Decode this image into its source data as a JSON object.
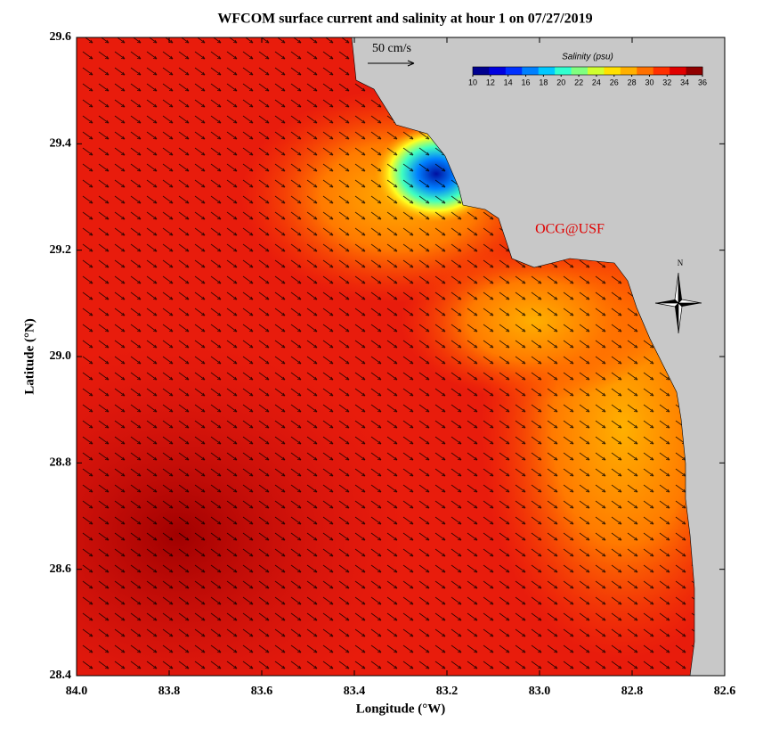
{
  "chart_data": {
    "type": "map",
    "title": "WFCOM surface current and salinity at hour 1 on 07/27/2019",
    "x_label": "Longitude (°W)",
    "y_label": "Latitude (°N)",
    "xlim": [
      84.0,
      82.6
    ],
    "xticks": [
      {
        "value": 84.0,
        "label": "84.0"
      },
      83.8,
      83.6,
      83.4,
      83.2,
      {
        "value": 83.0,
        "label": "83.0"
      },
      82.8,
      82.6
    ],
    "ylim": [
      28.4,
      29.6
    ],
    "yticks": [
      28.4,
      28.6,
      28.8,
      {
        "value": 29.0,
        "label": "29.0"
      },
      29.2,
      29.4,
      29.6
    ],
    "scale_label": "50 cm/s",
    "credit": "OCG@USF",
    "north_label": "N",
    "colorbar": {
      "title": "Salinity (psu)",
      "lim": [
        10,
        36
      ],
      "ticks": [
        10,
        12,
        14,
        16,
        18,
        20,
        22,
        24,
        26,
        28,
        30,
        32,
        34,
        36
      ],
      "colors": [
        "#00008f",
        "#0000df",
        "#0030ff",
        "#0080ff",
        "#00c8ff",
        "#30ffd0",
        "#80ff80",
        "#d0ff30",
        "#ffe000",
        "#ffb000",
        "#ff7000",
        "#ff3000",
        "#e00000",
        "#900000"
      ]
    }
  }
}
